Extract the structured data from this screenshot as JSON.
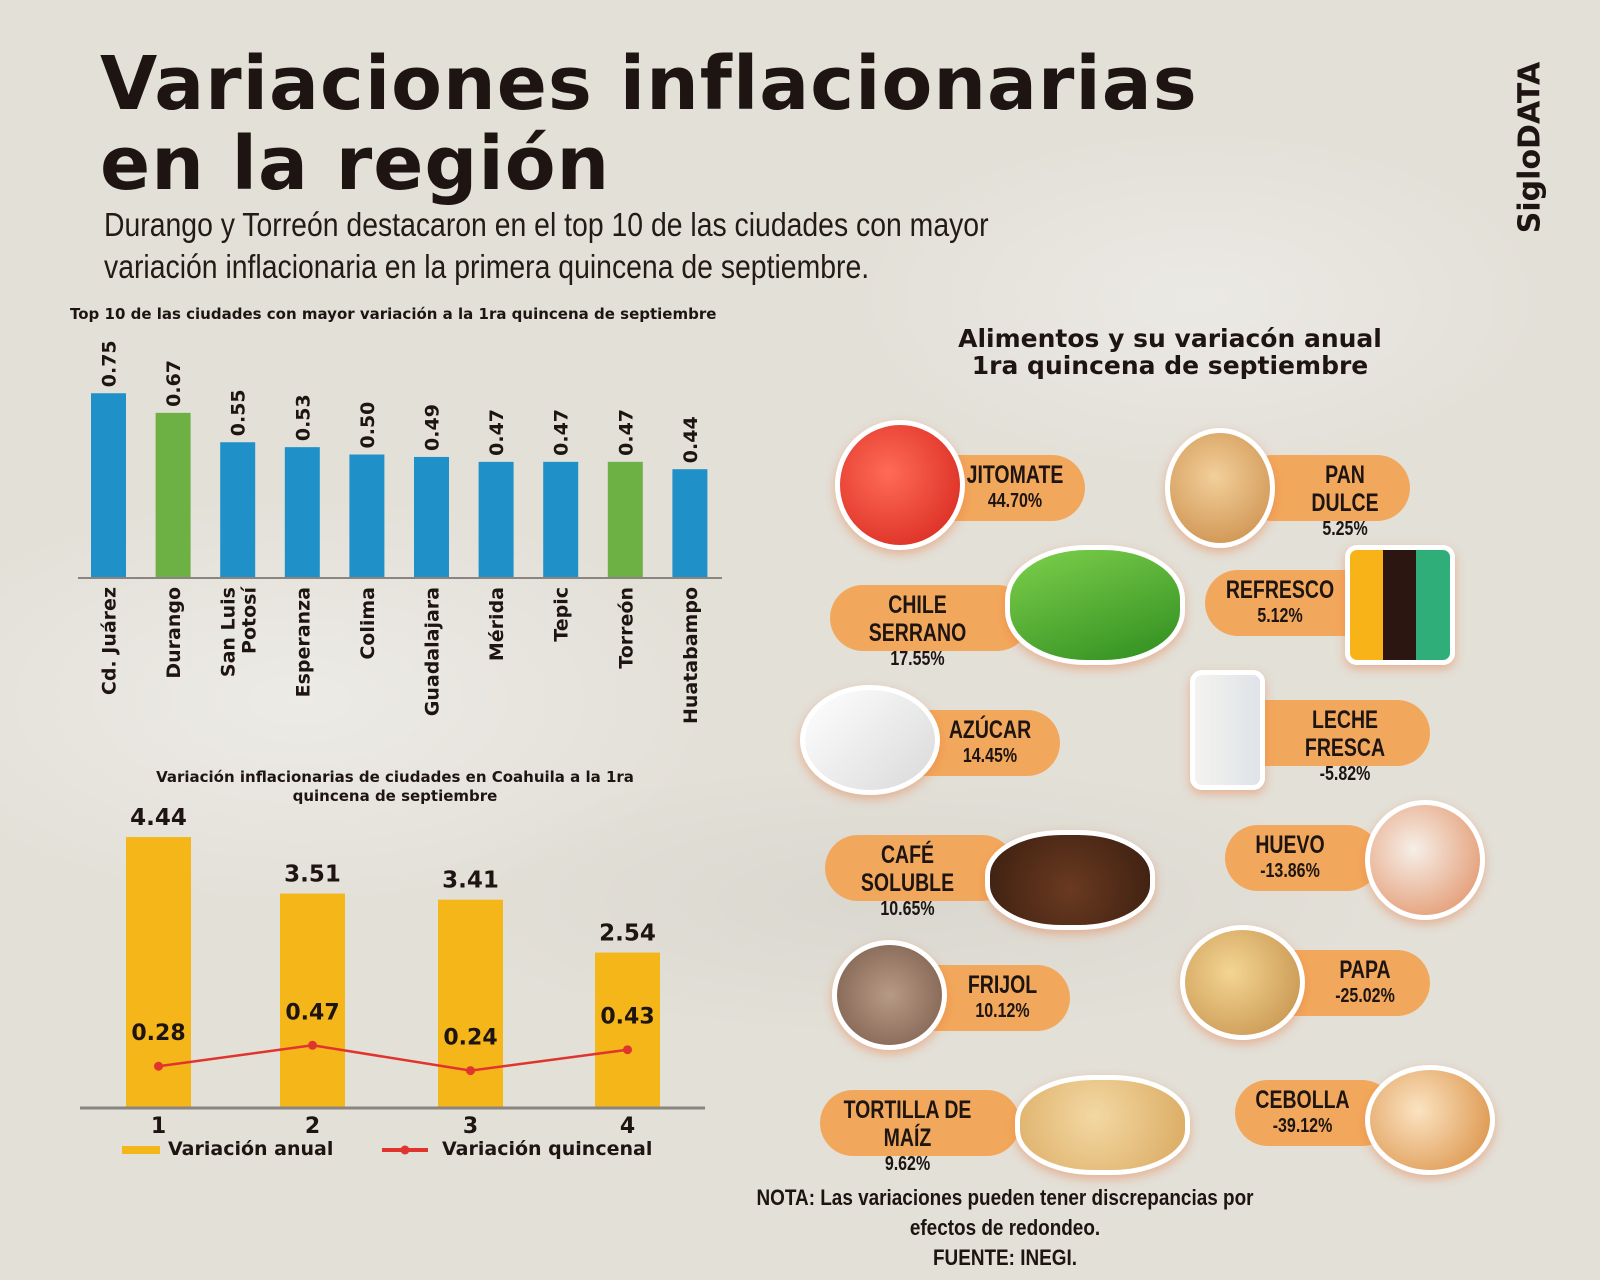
{
  "header": {
    "title_line1": "Variaciones inflacionarias",
    "title_line2": "en la región",
    "subtitle_line1": "Durango y Torreón destacaron en el top 10 de las ciudades con mayor",
    "subtitle_line2": "variación inflacionaria en la primera quincena de septiembre.",
    "brand": "SigloDATA"
  },
  "colors": {
    "blue_bar": "#2090c8",
    "green_bar": "#6db044",
    "yellow_bar": "#f5b61a",
    "red_line": "#e0342e",
    "pill": "#f2a85c",
    "background": "#e3e0d8",
    "text": "#1e1512"
  },
  "chart_data": [
    {
      "type": "bar",
      "title": "Top 10 de las ciudades con mayor variación a la 1ra quincena de septiembre",
      "categories": [
        "Cd. Juárez",
        "Durango",
        "San Luis Potosí",
        "Esperanza",
        "Colima",
        "Guadalajara",
        "Mérida",
        "Tepic",
        "Torreón",
        "Huatabampo"
      ],
      "values": [
        0.75,
        0.67,
        0.55,
        0.53,
        0.5,
        0.49,
        0.47,
        0.47,
        0.47,
        0.44
      ],
      "labels": [
        "0.75",
        "0.67",
        "0.55",
        "0.53",
        "0.50",
        "0.49",
        "0.47",
        "0.47",
        "0.47",
        "0.44"
      ],
      "highlight": [
        false,
        true,
        false,
        false,
        false,
        false,
        false,
        false,
        true,
        false
      ],
      "xlabel": "",
      "ylabel": "",
      "ylim": [
        0,
        0.8
      ],
      "grid": false
    },
    {
      "type": "bar",
      "title": "Variación inflacionarias de ciudades en Coahuila a la 1ra quincena de septiembre",
      "categories": [
        "1",
        "2",
        "3",
        "4"
      ],
      "series": [
        {
          "name": "Variación anual",
          "type": "bar",
          "values": [
            4.44,
            3.51,
            3.41,
            2.54
          ],
          "labels": [
            "4.44",
            "3.51",
            "3.41",
            "2.54"
          ]
        },
        {
          "name": "Variación quincenal",
          "type": "line",
          "values": [
            0.28,
            0.47,
            0.24,
            0.43
          ],
          "labels": [
            "0.28",
            "0.47",
            "0.24",
            "0.43"
          ]
        }
      ],
      "legend": "bottom",
      "xlabel": "",
      "ylabel": "",
      "ylim": [
        0,
        4.5
      ],
      "grid": false
    }
  ],
  "foods": {
    "title_line1": "Alimentos y su variacón anual",
    "title_line2": "1ra quincena de septiembre",
    "items": [
      {
        "name": "JITOMATE",
        "value": "44.70%",
        "icon": "tomato-icon"
      },
      {
        "name": "PAN DULCE",
        "value": "5.25%",
        "icon": "concha-bread-icon"
      },
      {
        "name": "CHILE SERRANO",
        "value": "17.55%",
        "icon": "chili-pepper-icon"
      },
      {
        "name": "REFRESCO",
        "value": "5.12%",
        "icon": "soda-bottles-icon"
      },
      {
        "name": "AZÚCAR",
        "value": "14.45%",
        "icon": "sugar-cubes-icon"
      },
      {
        "name": "LECHE FRESCA",
        "value": "-5.82%",
        "icon": "milk-glass-icon"
      },
      {
        "name": "CAFÉ SOLUBLE",
        "value": "10.65%",
        "icon": "coffee-grounds-icon"
      },
      {
        "name": "HUEVO",
        "value": "-13.86%",
        "icon": "eggs-icon"
      },
      {
        "name": "FRIJOL",
        "value": "10.12%",
        "icon": "beans-icon"
      },
      {
        "name": "PAPA",
        "value": "-25.02%",
        "icon": "potato-icon"
      },
      {
        "name": "TORTILLA DE MAÍZ",
        "value": "9.62%",
        "icon": "tortilla-icon"
      },
      {
        "name": "CEBOLLA",
        "value": "-39.12%",
        "icon": "onion-icon"
      }
    ]
  },
  "footer": {
    "note": "NOTA: Las variaciones pueden tener discrepancias por efectos de redondeo.",
    "source": "FUENTE: INEGI."
  }
}
